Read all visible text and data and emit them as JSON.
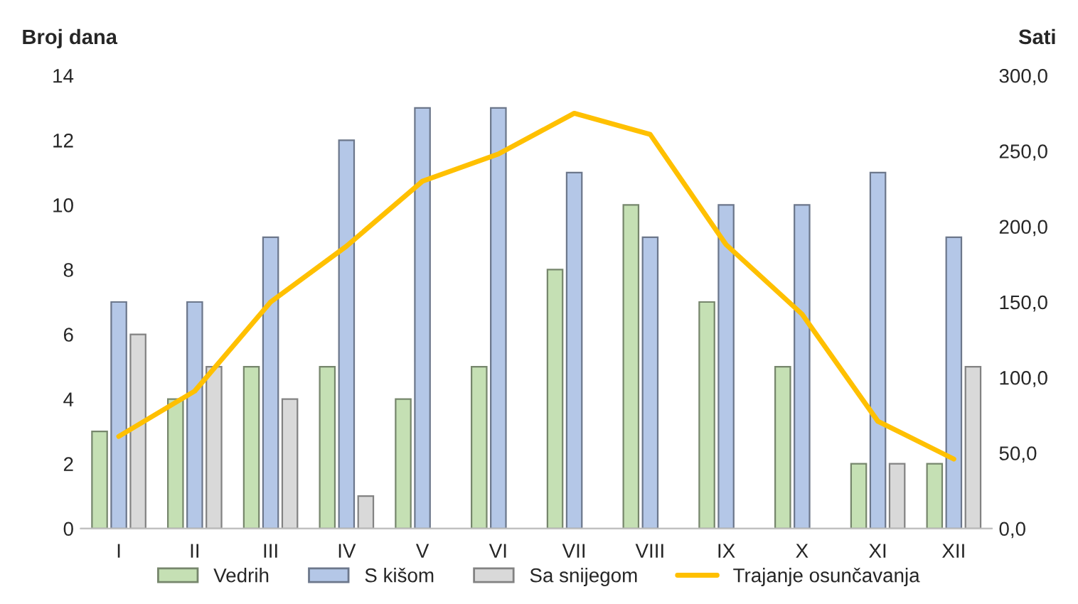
{
  "chart_data": {
    "type": "bar",
    "ylabel": "Broj dana",
    "y2label": "Sati",
    "categories": [
      "I",
      "II",
      "III",
      "IV",
      "V",
      "VI",
      "VII",
      "VIII",
      "IX",
      "X",
      "XI",
      "XII"
    ],
    "series": [
      {
        "name": "Vedrih",
        "color": "#c5e0b4",
        "values": [
          3,
          4,
          5,
          5,
          4,
          5,
          8,
          10,
          7,
          5,
          2,
          2
        ]
      },
      {
        "name": "S kišom",
        "color": "#b4c7e7",
        "values": [
          7,
          7,
          9,
          12,
          13,
          13,
          11,
          9,
          10,
          10,
          11,
          9
        ]
      },
      {
        "name": "Sa snijegom",
        "color": "#d9d9d9",
        "values": [
          6,
          5,
          4,
          1,
          null,
          null,
          null,
          null,
          null,
          null,
          2,
          5
        ]
      },
      {
        "name": "Trajanje osunčavanja",
        "type": "line",
        "axis": "y2",
        "color": "#ffc000",
        "values": [
          61,
          91,
          150,
          187,
          230,
          248,
          275,
          261,
          188,
          142,
          71,
          46
        ]
      }
    ],
    "ylim": [
      0,
      14
    ],
    "yticks": [
      0,
      2,
      4,
      6,
      8,
      10,
      12,
      14
    ],
    "y2lim": [
      0,
      300
    ],
    "y2ticks": [
      {
        "value": 0,
        "label": "0,0"
      },
      {
        "value": 50,
        "label": "50,0"
      },
      {
        "value": 100,
        "label": "100,0"
      },
      {
        "value": 150,
        "label": "150,0"
      },
      {
        "value": 200,
        "label": "200,0"
      },
      {
        "value": 250,
        "label": "250,0"
      },
      {
        "value": 300,
        "label": "300,0"
      }
    ],
    "grid": false,
    "legend": "bottom",
    "marker": "none",
    "line_style": "solid"
  }
}
